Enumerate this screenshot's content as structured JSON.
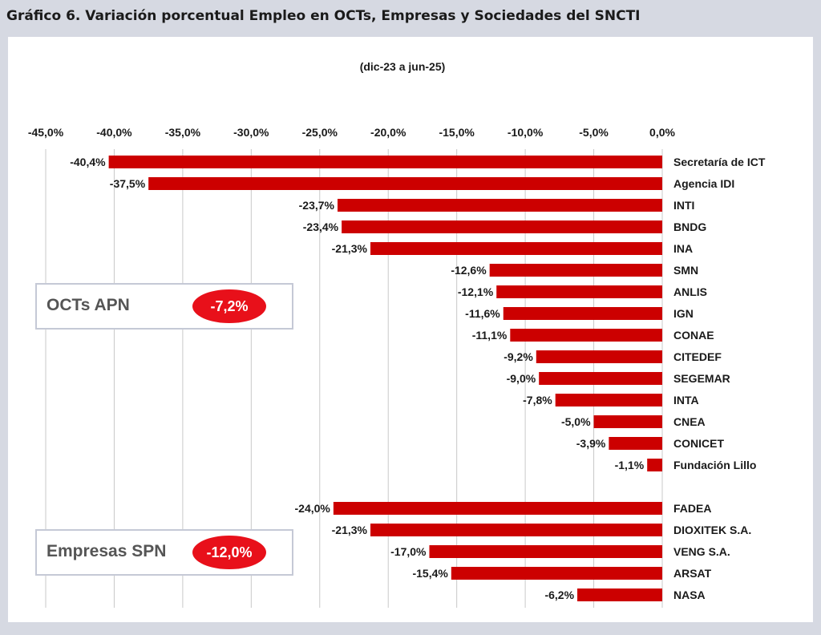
{
  "header": {
    "title": "Gráfico 6. Variación porcentual Empleo en OCTs, Empresas y Sociedades del SNCTI"
  },
  "chart_data": {
    "type": "bar",
    "orientation": "horizontal",
    "title": "",
    "subtitle": "(dic-23 a jun-25)",
    "xlabel": "",
    "ylabel": "",
    "xlim": [
      -45,
      0
    ],
    "x_ticks": [
      -45,
      -40,
      -35,
      -30,
      -25,
      -20,
      -15,
      -10,
      -5,
      0
    ],
    "x_tick_labels": [
      "-45,0%",
      "-40,0%",
      "-35,0%",
      "-30,0%",
      "-25,0%",
      "-20,0%",
      "-15,0%",
      "-10,0%",
      "-5,0%",
      "0,0%"
    ],
    "x_axis_position": "top",
    "grid": "vertical",
    "bar_color": "#cc0000",
    "groups": [
      {
        "name": "OCTs APN",
        "summary_value": "-7,2%",
        "categories": [
          "Secretaría de ICT",
          "Agencia IDI",
          "INTI",
          "BNDG",
          "INA",
          "SMN",
          "ANLIS",
          "IGN",
          "CONAE",
          "CITEDEF",
          "SEGEMAR",
          "INTA",
          "CNEA",
          "CONICET",
          "Fundación Lillo"
        ],
        "values": [
          -40.4,
          -37.5,
          -23.7,
          -23.4,
          -21.3,
          -12.6,
          -12.1,
          -11.6,
          -11.1,
          -9.2,
          -9.0,
          -7.8,
          -5.0,
          -3.9,
          -1.1
        ],
        "labels": [
          "-40,4%",
          "-37,5%",
          "-23,7%",
          "-23,4%",
          "-21,3%",
          "-12,6%",
          "-12,1%",
          "-11,6%",
          "-11,1%",
          "-9,2%",
          "-9,0%",
          "-7,8%",
          "-5,0%",
          "-3,9%",
          "-1,1%"
        ]
      },
      {
        "name": "Empresas SPN",
        "summary_value": "-12,0%",
        "categories": [
          "FADEA",
          "DIOXITEK S.A.",
          "VENG S.A.",
          "ARSAT",
          "NASA"
        ],
        "values": [
          -24.0,
          -21.3,
          -17.0,
          -15.4,
          -6.2
        ],
        "labels": [
          "-24,0%",
          "-21,3%",
          "-17,0%",
          "-15,4%",
          "-6,2%"
        ]
      }
    ],
    "colors": {
      "bar": "#cc0000",
      "badge": "#e8101a",
      "grid": "#c8c8c8"
    }
  }
}
